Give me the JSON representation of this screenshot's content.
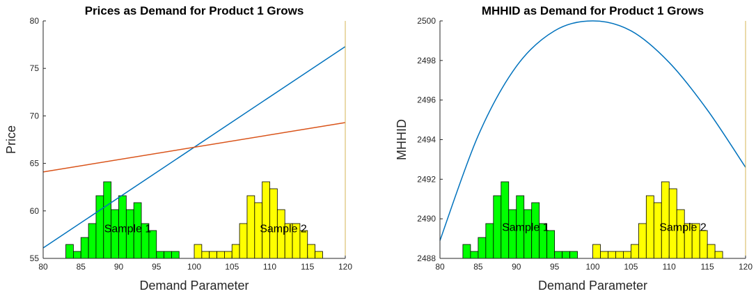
{
  "chart_data": [
    {
      "type": "line",
      "title": "Prices as Demand for Product 1 Grows",
      "xlabel": "Demand Parameter",
      "ylabel": "Price",
      "xlim": [
        80,
        120
      ],
      "ylim": [
        55,
        80
      ],
      "xticks": [
        80,
        85,
        90,
        95,
        100,
        105,
        110,
        115,
        120
      ],
      "yticks": [
        55,
        60,
        65,
        70,
        75,
        80
      ],
      "grid": false,
      "series": [
        {
          "color": "#0072bd",
          "x": [
            80,
            120
          ],
          "y": [
            56.1,
            77.3
          ]
        },
        {
          "color": "#d95319",
          "x": [
            80,
            120
          ],
          "y": [
            64.1,
            69.3
          ]
        }
      ],
      "histograms": [
        {
          "label": "Sample 1",
          "color": "#00ff00",
          "bin_width": 1,
          "bin_starts": [
            83,
            84,
            85,
            86,
            87,
            88,
            89,
            90,
            91,
            92,
            93,
            94,
            95,
            96,
            97
          ],
          "counts": [
            2,
            1,
            3,
            5,
            9,
            11,
            7,
            9,
            7,
            8,
            5,
            4,
            1,
            1,
            1
          ]
        },
        {
          "label": "Sample 2",
          "color": "#ffff00",
          "bin_width": 1,
          "bin_starts": [
            100,
            101,
            102,
            103,
            104,
            105,
            106,
            107,
            108,
            109,
            110,
            111,
            112,
            113,
            114,
            115,
            116
          ],
          "counts": [
            2,
            1,
            1,
            1,
            1,
            2,
            5,
            9,
            8,
            11,
            10,
            7,
            5,
            5,
            4,
            2,
            1
          ]
        }
      ],
      "annotations": [
        {
          "text": "Sample 1",
          "x": 91.2,
          "y": 58.2
        },
        {
          "text": "Sample 2",
          "x": 111.8,
          "y": 58.2
        }
      ]
    },
    {
      "type": "line",
      "title": "MHHID as Demand for Product 1 Grows",
      "xlabel": "Demand Parameter",
      "ylabel": "MHHID",
      "xlim": [
        80,
        120
      ],
      "ylim": [
        2488,
        2500
      ],
      "xticks": [
        80,
        85,
        90,
        95,
        100,
        105,
        110,
        115,
        120
      ],
      "yticks": [
        2488,
        2490,
        2492,
        2494,
        2496,
        2498,
        2500
      ],
      "grid": false,
      "series": [
        {
          "color": "#0072bd",
          "x": [
            80,
            85,
            90,
            95,
            100,
            105,
            110,
            115,
            120
          ],
          "y": [
            2488.9,
            2494.2,
            2497.7,
            2499.5,
            2500.0,
            2499.5,
            2497.9,
            2495.5,
            2492.6
          ]
        }
      ],
      "histograms": [
        {
          "label": "Sample 1",
          "color": "#00ff00",
          "bin_width": 1,
          "bin_starts": [
            83,
            84,
            85,
            86,
            87,
            88,
            89,
            90,
            91,
            92,
            93,
            94,
            95,
            96,
            97
          ],
          "counts": [
            2,
            1,
            3,
            5,
            9,
            11,
            7,
            9,
            7,
            8,
            5,
            4,
            1,
            1,
            1
          ]
        },
        {
          "label": "Sample 2",
          "color": "#ffff00",
          "bin_width": 1,
          "bin_starts": [
            100,
            101,
            102,
            103,
            104,
            105,
            106,
            107,
            108,
            109,
            110,
            111,
            112,
            113,
            114,
            115,
            116
          ],
          "counts": [
            2,
            1,
            1,
            1,
            1,
            2,
            5,
            9,
            8,
            11,
            10,
            7,
            5,
            5,
            4,
            2,
            1
          ]
        }
      ],
      "annotations": [
        {
          "text": "Sample 1",
          "x": 91.2,
          "y": 2489.6
        },
        {
          "text": "Sample 2",
          "x": 111.8,
          "y": 2489.6
        }
      ]
    }
  ]
}
